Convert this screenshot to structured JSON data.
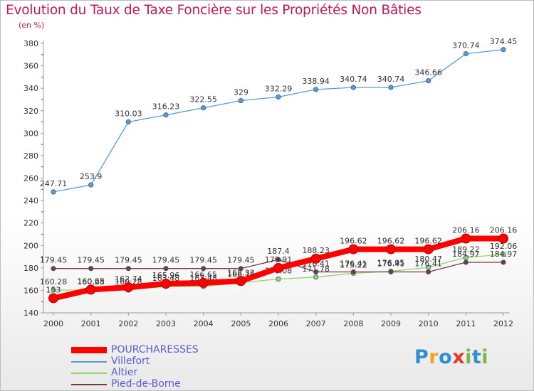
{
  "chart_data": {
    "type": "line",
    "title": "Evolution du Taux de Taxe Foncière sur les Propriétés Non Bâties",
    "unit_label": "(en %)",
    "xlabel": "",
    "ylabel": "",
    "categories": [
      "2000",
      "2001",
      "2002",
      "2003",
      "2004",
      "2005",
      "2006",
      "2007",
      "2008",
      "2009",
      "2010",
      "2011",
      "2012"
    ],
    "ylim": [
      140,
      380
    ],
    "yticks": [
      140,
      160,
      180,
      200,
      220,
      240,
      260,
      280,
      300,
      320,
      340,
      360,
      380
    ],
    "grid": false,
    "legend_position": "bottom-left",
    "series": [
      {
        "name": "POURCHARESSES",
        "color": "#ff0000",
        "values": [
          153,
          160.65,
          162.74,
          165.96,
          166.65,
          168.33,
          179.91,
          188.23,
          196.62,
          196.62,
          196.62,
          206.16,
          206.16
        ],
        "labels": [
          "153",
          "160.65",
          "162.74",
          "165.96",
          "166.65",
          "168.33",
          "179.91",
          "188.23",
          "196.62",
          "196.62",
          "196.62",
          "206.16",
          "206.16"
        ]
      },
      {
        "name": "Villefort",
        "color": "#5b9bd5",
        "values": [
          247.71,
          253.9,
          310.03,
          316.23,
          322.55,
          329,
          332.29,
          338.94,
          340.74,
          340.74,
          346.66,
          370.74,
          374.45
        ],
        "labels": [
          "247.71",
          "253.9",
          "310.03",
          "316.23",
          "322.55",
          "329",
          "332.29",
          "338.94",
          "340.74",
          "340.74",
          "346.66",
          "370.74",
          "374.45"
        ]
      },
      {
        "name": "Altier",
        "color": "#90d36b",
        "values": [
          160.28,
          160.28,
          160.28,
          163.48,
          163.48,
          166.75,
          170.08,
          171.78,
          175.22,
          176.95,
          180.47,
          189.22,
          192.06
        ],
        "labels": [
          "160.28",
          "160.28",
          "160.28",
          "163.48",
          "163.48",
          "166.75",
          "170.08",
          "171.78",
          "175.22",
          "176.95",
          "180.47",
          "189.22",
          "192.06"
        ]
      },
      {
        "name": "Pied-de-Borne",
        "color": "#7b3a3a",
        "values": [
          179.45,
          179.45,
          179.45,
          179.45,
          179.45,
          179.45,
          187.4,
          176.41,
          176.41,
          176.41,
          176.41,
          184.97,
          184.97
        ],
        "labels": [
          "179.45",
          "179.45",
          "179.45",
          "179.45",
          "179.45",
          "179.45",
          "187.4",
          "176.41",
          "176.41",
          "176.41",
          "176.41",
          "184.97",
          "184.97"
        ]
      }
    ]
  },
  "logo": {
    "letters": [
      "P",
      "r",
      "o",
      "x",
      "i",
      "t",
      "i"
    ]
  }
}
